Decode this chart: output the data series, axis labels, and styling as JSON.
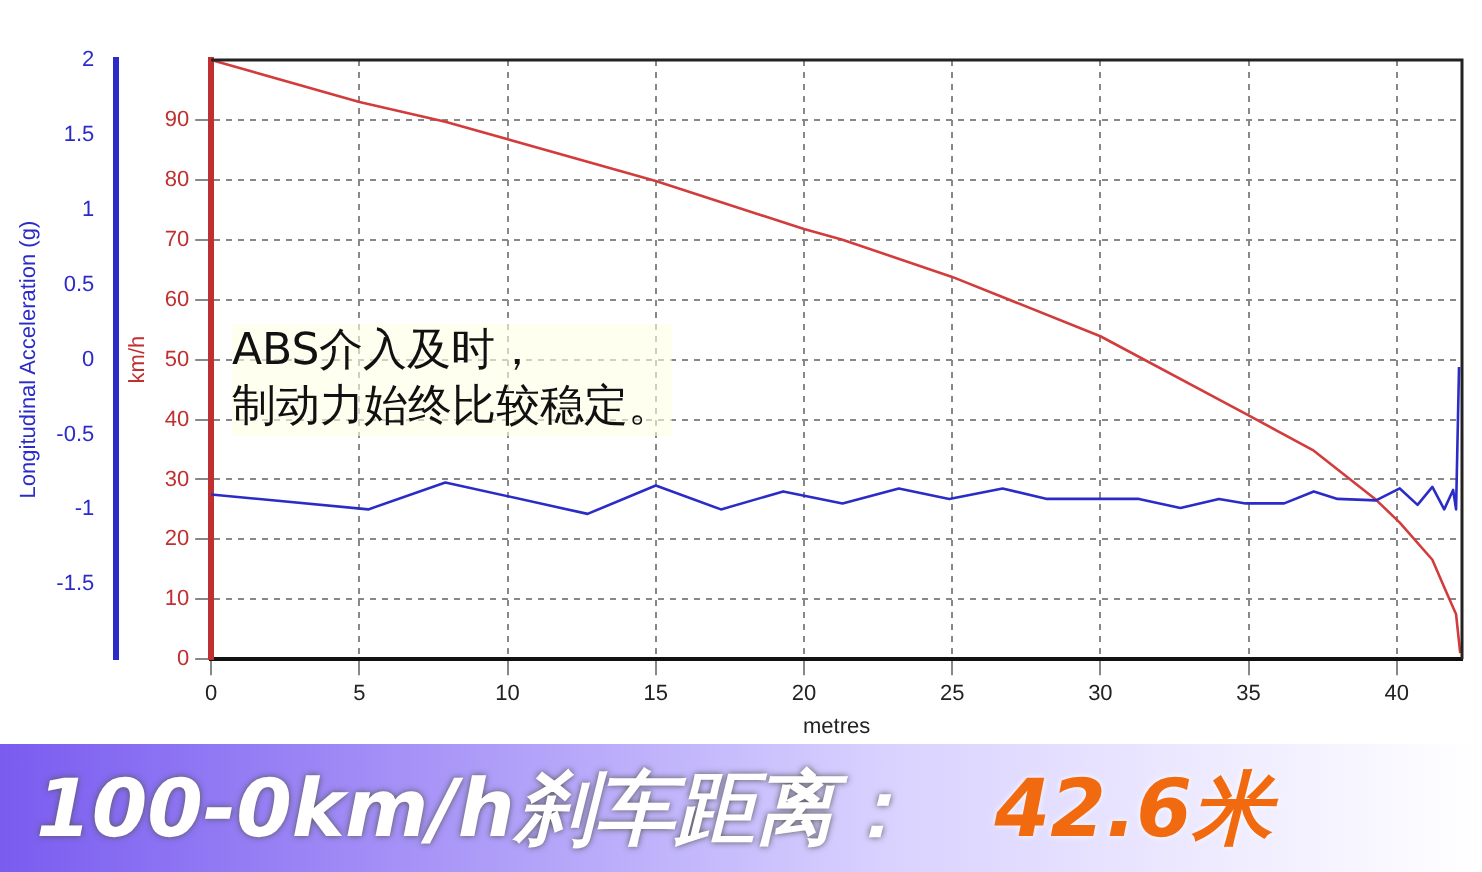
{
  "chart_data": {
    "type": "line",
    "title": "100-0km/h刹车距离：",
    "xlabel": "metres",
    "ylabel": "Longitudinal Acceleration (g)",
    "y2label": "km/h",
    "annotations": [
      "ABS介入及时，",
      "制动力始终比较稳定。",
      "42.6米"
    ],
    "xlim": [
      0,
      42.2
    ],
    "xticks": [
      0,
      5,
      10,
      15,
      20,
      25,
      30,
      35,
      40
    ],
    "ylim": [
      -2,
      2
    ],
    "yticks": [
      -1.5,
      -1,
      -0.5,
      0,
      0.5,
      1,
      1.5,
      2
    ],
    "y2lim": [
      0,
      100
    ],
    "y2ticks": [
      0,
      10,
      20,
      30,
      40,
      50,
      60,
      70,
      80,
      90
    ],
    "grid": true,
    "legend": false,
    "marker": "none",
    "line_style": "solid",
    "series": [
      {
        "color": "#2b2bc8",
        "x": [
          0,
          5.3,
          7.9,
          12.7,
          15,
          17.2,
          19.3,
          21.3,
          23.2,
          24.9,
          26.7,
          28.2,
          31.3,
          32.7,
          34,
          34.9,
          36.2,
          37.2,
          38,
          39.3,
          40.1,
          40.7,
          41.2,
          41.6,
          41.9,
          42,
          42.1
        ],
        "values": [
          -0.9,
          -1,
          -0.82,
          -1.03,
          -0.84,
          -1,
          -0.88,
          -0.96,
          -0.86,
          -0.93,
          -0.86,
          -0.93,
          -0.93,
          -0.99,
          -0.93,
          -0.96,
          -0.96,
          -0.88,
          -0.93,
          -0.94,
          -0.86,
          -0.97,
          -0.85,
          -1,
          -0.87,
          -1,
          -0.05
        ]
      },
      {
        "color": "#d23c3c",
        "axis": "y2",
        "x": [
          0,
          5,
          7.9,
          15,
          20,
          21.3,
          25,
          30,
          35,
          37.2,
          39.3,
          40.1,
          41.2,
          41.6,
          42,
          42.14
        ],
        "values": [
          100,
          93,
          89.7,
          79.8,
          71.8,
          70,
          63.8,
          53.9,
          40.7,
          34.8,
          26.6,
          22.8,
          16.6,
          12,
          7.5,
          1
        ]
      }
    ]
  }
}
